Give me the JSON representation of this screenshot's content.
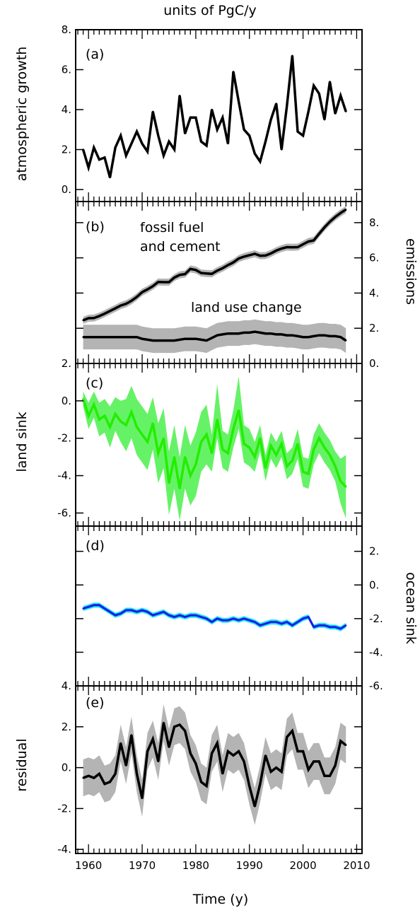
{
  "header": {
    "title": "units of PgC/y"
  },
  "chart_data": [
    {
      "type": "line",
      "panel_label": "(a)",
      "ylabel": "atmospheric growth",
      "ylim": [
        -0.6,
        8
      ],
      "yticks": [
        "8.",
        "6.",
        "4.",
        "2.",
        "0."
      ],
      "x": [
        1959,
        1960,
        1961,
        1962,
        1963,
        1964,
        1965,
        1966,
        1967,
        1968,
        1969,
        1970,
        1971,
        1972,
        1973,
        1974,
        1975,
        1976,
        1977,
        1978,
        1979,
        1980,
        1981,
        1982,
        1983,
        1984,
        1985,
        1986,
        1987,
        1988,
        1989,
        1990,
        1991,
        1992,
        1993,
        1994,
        1995,
        1996,
        1997,
        1998,
        1999,
        2000,
        2001,
        2002,
        2003,
        2004,
        2005,
        2006,
        2007,
        2008
      ],
      "series": [
        {
          "values": [
            2.0,
            1.1,
            2.1,
            1.5,
            1.6,
            0.6,
            2.1,
            2.7,
            1.7,
            2.3,
            2.9,
            2.3,
            1.9,
            3.9,
            2.7,
            1.7,
            2.4,
            2.0,
            4.7,
            2.8,
            3.6,
            3.6,
            2.4,
            2.2,
            4.0,
            3.0,
            3.6,
            2.3,
            5.9,
            4.4,
            3.0,
            2.7,
            1.8,
            1.4,
            2.4,
            3.5,
            4.3,
            2.0,
            4.2,
            6.7,
            2.9,
            2.7,
            3.9,
            5.2,
            4.8,
            3.5,
            5.4,
            3.8,
            4.7,
            3.9
          ]
        }
      ]
    },
    {
      "type": "area",
      "panel_label": "(b)",
      "ylabel": "emissions",
      "ylim": [
        0,
        9.2
      ],
      "yticks": [
        "8.",
        "6.",
        "4.",
        "2.",
        "0."
      ],
      "annotations": [
        "fossil fuel",
        "and cement",
        "land use change"
      ],
      "x": [
        1959,
        1960,
        1961,
        1962,
        1963,
        1964,
        1965,
        1966,
        1967,
        1968,
        1969,
        1970,
        1971,
        1972,
        1973,
        1974,
        1975,
        1976,
        1977,
        1978,
        1979,
        1980,
        1981,
        1982,
        1983,
        1984,
        1985,
        1986,
        1987,
        1988,
        1989,
        1990,
        1991,
        1992,
        1993,
        1994,
        1995,
        1996,
        1997,
        1998,
        1999,
        2000,
        2001,
        2002,
        2003,
        2004,
        2005,
        2006,
        2007,
        2008
      ],
      "series": [
        {
          "values": [
            2.45,
            2.57,
            2.58,
            2.69,
            2.83,
            2.98,
            3.13,
            3.29,
            3.39,
            3.56,
            3.78,
            4.05,
            4.21,
            4.39,
            4.63,
            4.62,
            4.62,
            4.88,
            5.03,
            5.08,
            5.37,
            5.31,
            5.14,
            5.11,
            5.09,
            5.27,
            5.41,
            5.59,
            5.74,
            5.96,
            6.07,
            6.15,
            6.23,
            6.12,
            6.13,
            6.25,
            6.41,
            6.53,
            6.61,
            6.6,
            6.61,
            6.77,
            6.93,
            6.99,
            7.37,
            7.73,
            8.05,
            8.32,
            8.55,
            8.74
          ],
          "band": 0.2
        },
        {
          "values": [
            1.5,
            1.5,
            1.5,
            1.5,
            1.5,
            1.5,
            1.5,
            1.5,
            1.5,
            1.5,
            1.5,
            1.4,
            1.35,
            1.3,
            1.3,
            1.3,
            1.3,
            1.3,
            1.35,
            1.4,
            1.4,
            1.4,
            1.35,
            1.3,
            1.45,
            1.6,
            1.65,
            1.7,
            1.7,
            1.7,
            1.75,
            1.75,
            1.8,
            1.75,
            1.7,
            1.7,
            1.65,
            1.65,
            1.6,
            1.6,
            1.55,
            1.5,
            1.5,
            1.55,
            1.6,
            1.6,
            1.55,
            1.55,
            1.5,
            1.3
          ],
          "band": 0.7
        }
      ]
    },
    {
      "type": "area",
      "panel_label": "(c)",
      "ylabel": "land sink",
      "ylim": [
        -6.7,
        2
      ],
      "yticks": [
        "2.",
        "0.",
        "-2.",
        "-4.",
        "-6."
      ],
      "x": [
        1959,
        1960,
        1961,
        1962,
        1963,
        1964,
        1965,
        1966,
        1967,
        1968,
        1969,
        1970,
        1971,
        1972,
        1973,
        1974,
        1975,
        1976,
        1977,
        1978,
        1979,
        1980,
        1981,
        1982,
        1983,
        1984,
        1985,
        1986,
        1987,
        1988,
        1989,
        1990,
        1991,
        1992,
        1993,
        1994,
        1995,
        1996,
        1997,
        1998,
        1999,
        2000,
        2001,
        2002,
        2003,
        2004,
        2005,
        2006,
        2007,
        2008
      ],
      "series": [
        {
          "values": [
            0.1,
            -0.8,
            -0.2,
            -1.0,
            -0.8,
            -1.4,
            -0.7,
            -1.1,
            -1.3,
            -0.6,
            -1.4,
            -1.8,
            -2.2,
            -1.2,
            -2.8,
            -2.0,
            -4.4,
            -3.0,
            -4.7,
            -3.0,
            -4.0,
            -3.4,
            -2.2,
            -1.8,
            -2.8,
            -1.0,
            -2.6,
            -2.8,
            -1.5,
            -0.5,
            -2.3,
            -2.5,
            -3.0,
            -2.0,
            -3.6,
            -2.4,
            -2.9,
            -2.3,
            -3.5,
            -3.2,
            -2.3,
            -3.8,
            -3.9,
            -2.6,
            -2.0,
            -2.5,
            -2.9,
            -3.5,
            -4.3,
            -4.6
          ],
          "band_low": [
            -0.3,
            -1.5,
            -0.9,
            -1.9,
            -1.7,
            -2.5,
            -1.6,
            -2.2,
            -2.7,
            -2.0,
            -2.9,
            -3.3,
            -3.7,
            -2.6,
            -4.4,
            -3.6,
            -6.1,
            -4.7,
            -6.4,
            -4.7,
            -5.6,
            -5.1,
            -3.8,
            -3.4,
            -3.8,
            -2.0,
            -3.6,
            -3.8,
            -2.5,
            -1.5,
            -3.3,
            -3.5,
            -3.8,
            -2.7,
            -4.3,
            -3.1,
            -3.6,
            -3.0,
            -4.2,
            -3.9,
            -3.1,
            -4.6,
            -4.7,
            -3.4,
            -2.8,
            -3.3,
            -3.7,
            -4.3,
            -5.5,
            -6.3
          ],
          "band_high": [
            0.5,
            -0.1,
            0.5,
            -0.1,
            0.1,
            -0.3,
            0.2,
            0.0,
            0.1,
            0.8,
            0.1,
            -0.3,
            -0.7,
            0.2,
            -1.2,
            -0.4,
            -2.7,
            -1.3,
            -3.0,
            -1.3,
            -2.4,
            -1.7,
            -0.6,
            -0.2,
            -1.8,
            0.9,
            -1.6,
            -1.8,
            -0.5,
            1.3,
            -1.3,
            -1.5,
            -2.2,
            -1.3,
            -2.9,
            -1.7,
            -2.2,
            -1.6,
            -2.8,
            -2.5,
            -1.5,
            -3.0,
            -3.1,
            -1.8,
            -1.2,
            -1.7,
            -2.1,
            -2.7,
            -3.1,
            -2.9
          ]
        }
      ]
    },
    {
      "type": "area",
      "panel_label": "(d)",
      "ylabel": "ocean sink",
      "ylim": [
        -6,
        3.5
      ],
      "yticks": [
        "2.",
        "0.",
        "-2.",
        "-4.",
        "-6."
      ],
      "x": [
        1959,
        1960,
        1961,
        1962,
        1963,
        1964,
        1965,
        1966,
        1967,
        1968,
        1969,
        1970,
        1971,
        1972,
        1973,
        1974,
        1975,
        1976,
        1977,
        1978,
        1979,
        1980,
        1981,
        1982,
        1983,
        1984,
        1985,
        1986,
        1987,
        1988,
        1989,
        1990,
        1991,
        1992,
        1993,
        1994,
        1995,
        1996,
        1997,
        1998,
        1999,
        2000,
        2001,
        2002,
        2003,
        2004,
        2005,
        2006,
        2007,
        2008
      ],
      "series": [
        {
          "values": [
            -1.4,
            -1.3,
            -1.2,
            -1.2,
            -1.4,
            -1.6,
            -1.8,
            -1.7,
            -1.5,
            -1.5,
            -1.6,
            -1.5,
            -1.6,
            -1.8,
            -1.7,
            -1.6,
            -1.8,
            -1.9,
            -1.8,
            -1.9,
            -1.8,
            -1.8,
            -1.9,
            -2.0,
            -2.2,
            -2.0,
            -2.1,
            -2.1,
            -2.0,
            -2.1,
            -2.0,
            -2.1,
            -2.2,
            -2.4,
            -2.3,
            -2.2,
            -2.2,
            -2.3,
            -2.2,
            -2.4,
            -2.2,
            -2.0,
            -1.9,
            -2.5,
            -2.4,
            -2.4,
            -2.5,
            -2.5,
            -2.6,
            -2.4
          ],
          "band": 0.15
        }
      ]
    },
    {
      "type": "area",
      "panel_label": "(e)",
      "ylabel": "residual",
      "ylim": [
        -4.2,
        4
      ],
      "yticks": [
        "4.",
        "2.",
        "0.",
        "-2.",
        "-4."
      ],
      "xlabel": "Time (y)",
      "xticks": [
        "1960",
        "1970",
        "1980",
        "1990",
        "2000",
        "2010"
      ],
      "x": [
        1959,
        1960,
        1961,
        1962,
        1963,
        1964,
        1965,
        1966,
        1967,
        1968,
        1969,
        1970,
        1971,
        1972,
        1973,
        1974,
        1975,
        1976,
        1977,
        1978,
        1979,
        1980,
        1981,
        1982,
        1983,
        1984,
        1985,
        1986,
        1987,
        1988,
        1989,
        1990,
        1991,
        1992,
        1993,
        1994,
        1995,
        1996,
        1997,
        1998,
        1999,
        2000,
        2001,
        2002,
        2003,
        2004,
        2005,
        2006,
        2007,
        2008
      ],
      "series": [
        {
          "values": [
            -0.5,
            -0.4,
            -0.5,
            -0.3,
            -0.8,
            -0.7,
            -0.3,
            1.2,
            0.1,
            1.6,
            -0.3,
            -1.5,
            0.8,
            1.4,
            0.3,
            2.2,
            1.0,
            2.0,
            2.1,
            1.8,
            0.7,
            0.2,
            -0.7,
            -0.9,
            0.7,
            1.2,
            -0.3,
            0.8,
            0.6,
            0.8,
            0.3,
            -0.9,
            -1.9,
            -0.8,
            0.6,
            -0.2,
            0.0,
            -0.2,
            1.5,
            1.8,
            0.8,
            0.8,
            -0.1,
            0.3,
            0.3,
            -0.4,
            -0.4,
            0.1,
            1.3,
            1.1
          ],
          "band": 0.9
        }
      ]
    }
  ]
}
